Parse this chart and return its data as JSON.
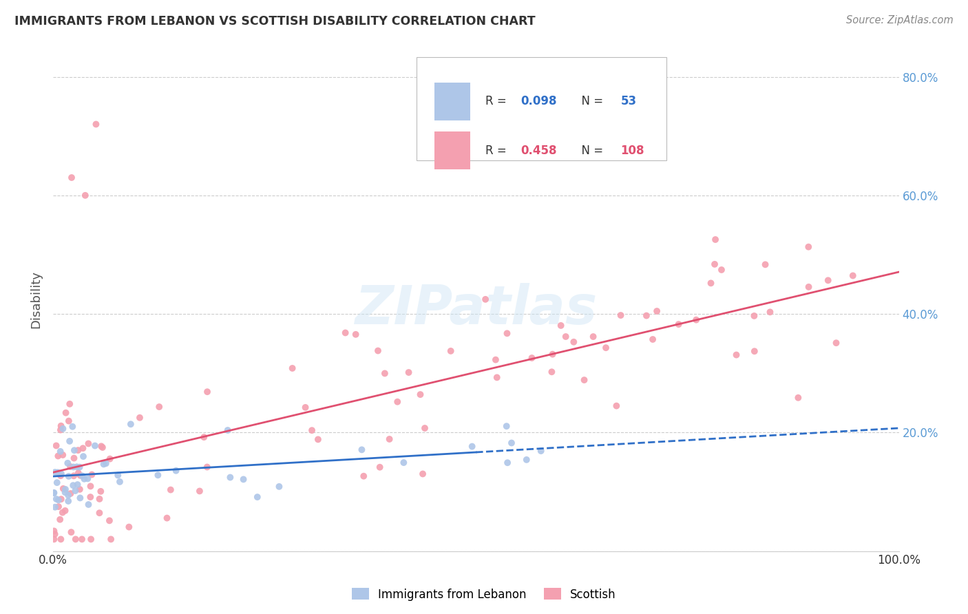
{
  "title": "IMMIGRANTS FROM LEBANON VS SCOTTISH DISABILITY CORRELATION CHART",
  "source": "Source: ZipAtlas.com",
  "ylabel": "Disability",
  "xmin": 0.0,
  "xmax": 1.0,
  "ymin": 0.0,
  "ymax": 0.85,
  "yticks": [
    0.0,
    0.2,
    0.4,
    0.6,
    0.8
  ],
  "right_ytick_labels": [
    "",
    "20.0%",
    "40.0%",
    "60.0%",
    "80.0%"
  ],
  "xtick_labels": [
    "0.0%",
    "100.0%"
  ],
  "blue_R": 0.098,
  "blue_N": 53,
  "pink_R": 0.458,
  "pink_N": 108,
  "blue_color": "#aec6e8",
  "pink_color": "#f4a0b0",
  "blue_line_color": "#3070c8",
  "pink_line_color": "#e05070",
  "legend_label_blue": "Immigrants from Lebanon",
  "legend_label_pink": "Scottish",
  "watermark": "ZIPatlas",
  "background_color": "#ffffff",
  "grid_color": "#cccccc",
  "blue_seed": 10,
  "pink_seed": 20,
  "blue_R_text_color": "#3070c8",
  "pink_R_text_color": "#e05070",
  "axis_label_color": "#5b9bd5",
  "title_color": "#333333",
  "source_color": "#888888"
}
